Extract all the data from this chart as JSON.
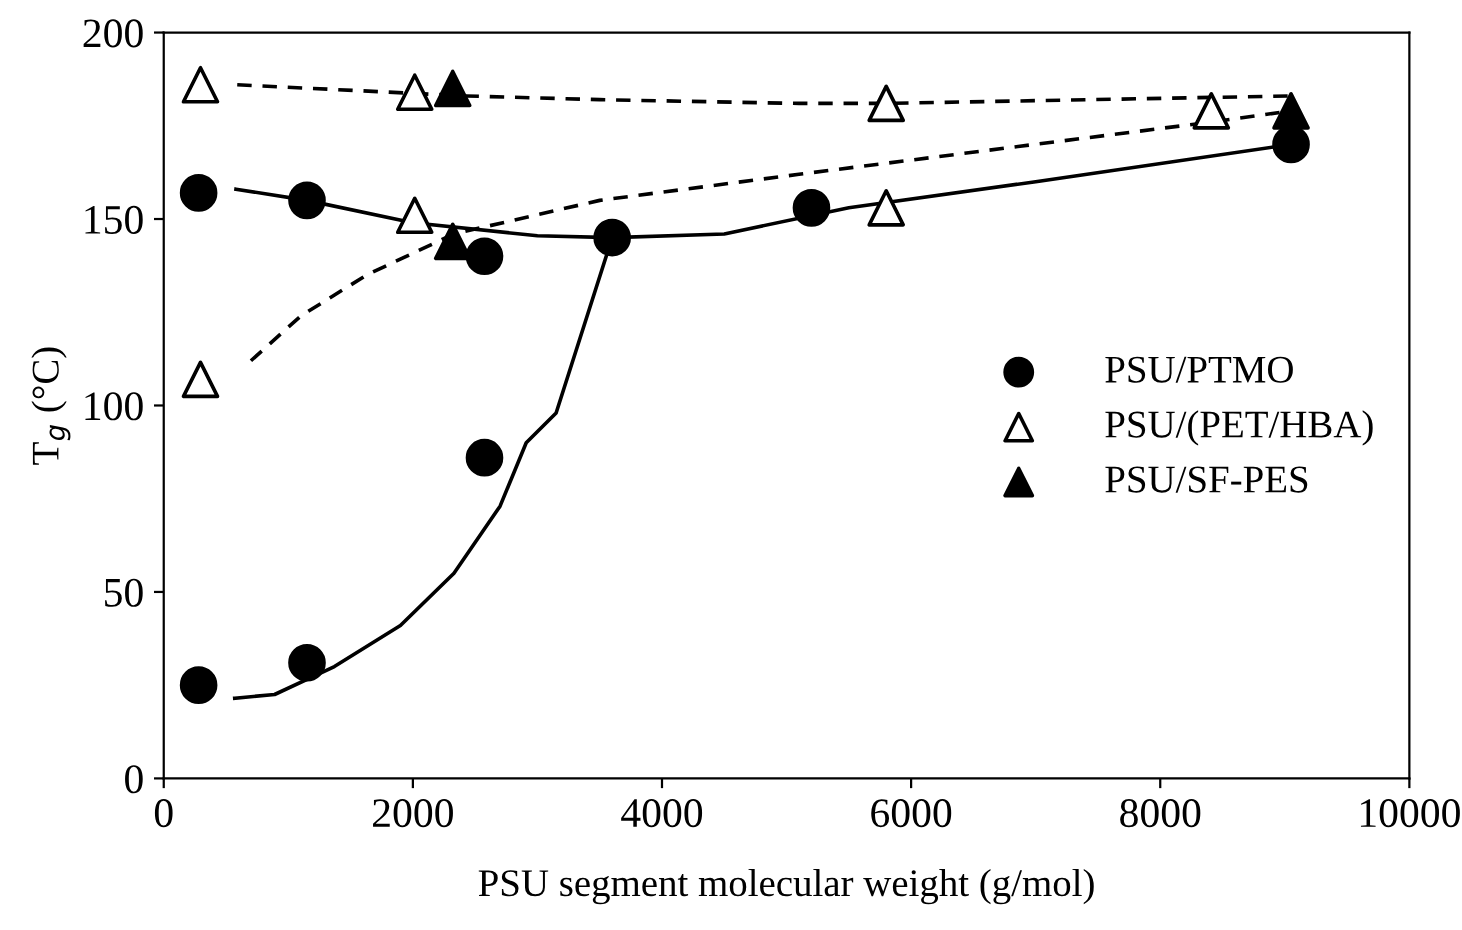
{
  "chart_data": {
    "type": "scatter",
    "xlabel": "PSU segment molecular weight (g/mol)",
    "ylabel": "T$_{g}$ (°C)",
    "xlim": [
      0,
      10000
    ],
    "xticks": [
      0,
      2000,
      4000,
      6000,
      8000,
      10000
    ],
    "ylim": [
      0,
      200
    ],
    "yticks": [
      0,
      50,
      100,
      150,
      200
    ],
    "grid": false,
    "legend": "right",
    "series": [
      {
        "type": "line",
        "color": "#000000",
        "line_style": "solid",
        "marker": "none",
        "x": [
          580,
          1150,
          2000,
          3000,
          3600,
          4500,
          5500,
          7000,
          9050
        ],
        "values": [
          158,
          155,
          149,
          145.5,
          145,
          146,
          153,
          160,
          170
        ]
      },
      {
        "type": "line",
        "color": "#000000",
        "line_style": "solid",
        "marker": "none",
        "x": [
          570,
          890,
          1370,
          1900,
          2330,
          2700,
          2910,
          3150,
          3600
        ],
        "values": [
          21.5,
          22.5,
          30,
          41,
          55,
          73,
          90,
          98,
          145
        ]
      },
      {
        "type": "line",
        "color": "#000000",
        "line_style": "dashed",
        "marker": "none",
        "x": [
          590,
          2430,
          3500,
          5100,
          5800,
          9050
        ],
        "values": [
          186,
          183,
          182,
          181,
          181,
          183
        ]
      },
      {
        "type": "line",
        "color": "#000000",
        "line_style": "dashed",
        "marker": "none",
        "x": [
          700,
          1100,
          1630,
          2330,
          3500,
          5100,
          8410,
          9050
        ],
        "values": [
          112,
          124,
          135,
          146,
          155,
          162,
          176,
          179
        ]
      },
      {
        "name": "PSU/PTMO",
        "color": "#000000",
        "marker": "circle",
        "x": [
          280,
          280,
          1150,
          1150,
          2575,
          2575,
          3600,
          5200,
          9050
        ],
        "values": [
          157,
          25,
          155,
          31,
          140,
          86,
          145,
          153,
          170
        ]
      },
      {
        "name": "PSU/(PET/HBA)",
        "color": "#ffffff",
        "marker": "triangle",
        "x": [
          295,
          295,
          2015,
          2015,
          5800,
          5800,
          8410
        ],
        "values": [
          186,
          107,
          184,
          151,
          181,
          153,
          179
        ]
      },
      {
        "name": "PSU/SF-PES",
        "color": "#000000",
        "marker": "triangle",
        "x": [
          2320,
          2320,
          9050
        ],
        "values": [
          185,
          144,
          179
        ]
      }
    ]
  }
}
